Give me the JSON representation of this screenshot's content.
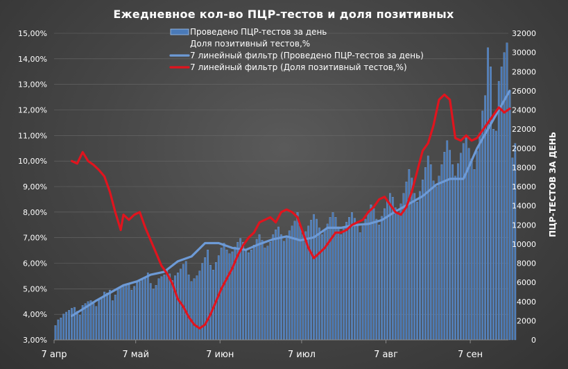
{
  "chart_data": {
    "type": "bar",
    "title": "Ежедневное кол-во ПЦР-тестов и доля позитивных",
    "ylabel_right": "ПЦР-ТЕСТОВ ЗА ДЕНЬ",
    "x_tick_labels": [
      "7 апр",
      "7 май",
      "7 июн",
      "7 июл",
      "7 авг",
      "7 сен"
    ],
    "x_tick_day_index": [
      0,
      30,
      61,
      91,
      122,
      153
    ],
    "x_range_days": [
      0,
      167
    ],
    "y_left": {
      "range": [
        0.03,
        0.15
      ],
      "ticks": [
        0.03,
        0.04,
        0.05,
        0.06,
        0.07,
        0.08,
        0.09,
        0.1,
        0.11,
        0.12,
        0.13,
        0.14,
        0.15
      ],
      "tick_labels": [
        "3,00%",
        "4,00%",
        "5,00%",
        "6,00%",
        "7,00%",
        "8,00%",
        "9,00%",
        "10,00%",
        "11,00%",
        "12,00%",
        "13,00%",
        "14,00%",
        "15,00%"
      ]
    },
    "y_right": {
      "range": [
        0,
        32000
      ],
      "ticks": [
        0,
        2000,
        4000,
        6000,
        8000,
        10000,
        12000,
        14000,
        16000,
        18000,
        20000,
        22000,
        24000,
        26000,
        28000,
        30000,
        32000
      ],
      "tick_labels": [
        "0",
        "2000",
        "4000",
        "6000",
        "8000",
        "10000",
        "12000",
        "14000",
        "16000",
        "18000",
        "20000",
        "22000",
        "24000",
        "26000",
        "28000",
        "30000",
        "32000"
      ]
    },
    "legend": {
      "position": "top-center",
      "entries": [
        {
          "label": "Проведено ПЦР-тестов  за день",
          "kind": "bar"
        },
        {
          "label": "Доля позитивный  тестов,%",
          "kind": "none"
        },
        {
          "label": "7 линейный фильтр (Проведено ПЦР-тестов  за день)",
          "kind": "line"
        },
        {
          "label": "7 линейный фильтр (Доля позитивный  тестов,%)",
          "kind": "line"
        }
      ]
    },
    "colors": {
      "bar": "#4a7ab8",
      "bar_edge": "#8fb3e0",
      "tests_filter_line": "#6d9ad6",
      "positivity_filter_line": "#e0141e"
    },
    "series": [
      {
        "name": "Проведено ПЦР-тестов  за день",
        "axis": "right",
        "kind": "bar",
        "x_start_day": 0,
        "values": [
          1500,
          2100,
          2300,
          2700,
          2900,
          3100,
          3300,
          3400,
          3000,
          2600,
          3600,
          3800,
          4000,
          4100,
          3800,
          3500,
          4200,
          4400,
          5000,
          4900,
          5200,
          4100,
          4700,
          5300,
          5500,
          5700,
          5800,
          5900,
          5200,
          5600,
          6000,
          6100,
          6300,
          6500,
          7000,
          5900,
          5300,
          5700,
          6400,
          6600,
          6800,
          7200,
          6900,
          6200,
          6700,
          7000,
          7400,
          7900,
          8200,
          6800,
          6100,
          6400,
          6700,
          7200,
          8000,
          8600,
          9400,
          7800,
          7300,
          8100,
          8800,
          9600,
          10100,
          9400,
          9000,
          9200,
          9700,
          10200,
          10600,
          10200,
          9300,
          9100,
          9400,
          9900,
          10500,
          11000,
          10400,
          9600,
          9800,
          10200,
          11000,
          11500,
          11800,
          11000,
          10300,
          10700,
          11400,
          11900,
          12400,
          13300,
          12000,
          11000,
          11300,
          11900,
          12500,
          13100,
          12600,
          11700,
          11000,
          11500,
          12100,
          12800,
          13300,
          12800,
          11800,
          11000,
          11700,
          12300,
          12800,
          13300,
          12700,
          11900,
          11200,
          11900,
          12600,
          13400,
          14100,
          13700,
          12600,
          12000,
          12900,
          13700,
          14500,
          15300,
          14900,
          13800,
          13100,
          14200,
          15300,
          16500,
          17800,
          16900,
          15300,
          14400,
          15500,
          16700,
          18000,
          19200,
          18300,
          16600,
          16000,
          17100,
          18300,
          19600,
          20800,
          19800,
          18300,
          17100,
          18400,
          19500,
          20500,
          21100,
          20000,
          18900,
          17800,
          19700,
          21600,
          23900,
          25500,
          30500,
          28500,
          22000,
          21800,
          27000,
          28500,
          30000,
          31000,
          26000,
          19000,
          20500
        ],
        "values_min": 1500,
        "values_max": 31000
      },
      {
        "name": "7 линейный фильтр (Проведено ПЦР-тестов  за день)",
        "axis": "right",
        "kind": "line",
        "x": [
          6,
          10,
          15,
          20,
          25,
          30,
          35,
          40,
          45,
          50,
          55,
          60,
          65,
          70,
          75,
          80,
          85,
          90,
          95,
          100,
          105,
          110,
          115,
          120,
          125,
          130,
          135,
          140,
          145,
          150,
          155,
          160,
          165,
          167
        ],
        "values": [
          2500,
          3200,
          4100,
          4900,
          5700,
          6100,
          6800,
          7100,
          8200,
          8700,
          10100,
          10100,
          9600,
          9400,
          10000,
          10500,
          10800,
          10400,
          10700,
          11700,
          11700,
          12000,
          12100,
          12500,
          13400,
          14200,
          15000,
          16200,
          16800,
          16800,
          20000,
          22500,
          25000,
          26000
        ]
      },
      {
        "name": "7 линейный фильтр (Доля позитивный  тестов,%)",
        "axis": "left",
        "kind": "line",
        "x": [
          6,
          8,
          10,
          12,
          14,
          16,
          18,
          20,
          22,
          24,
          25,
          27,
          29,
          31,
          33,
          35,
          37,
          39,
          41,
          43,
          45,
          47,
          49,
          51,
          53,
          55,
          57,
          59,
          61,
          63,
          65,
          67,
          69,
          71,
          73,
          75,
          77,
          79,
          81,
          83,
          85,
          87,
          89,
          91,
          93,
          95,
          97,
          99,
          101,
          103,
          105,
          107,
          109,
          111,
          113,
          115,
          117,
          119,
          121,
          123,
          125,
          127,
          129,
          131,
          133,
          135,
          137,
          139,
          141,
          143,
          145,
          147,
          149,
          151,
          153,
          155,
          157,
          159,
          161,
          163,
          165,
          167
        ],
        "values": [
          0.1,
          0.099,
          0.1035,
          0.1,
          0.0985,
          0.0965,
          0.094,
          0.088,
          0.08,
          0.073,
          0.079,
          0.077,
          0.079,
          0.08,
          0.074,
          0.069,
          0.064,
          0.059,
          0.056,
          0.052,
          0.046,
          0.043,
          0.039,
          0.036,
          0.0345,
          0.036,
          0.04,
          0.045,
          0.05,
          0.054,
          0.058,
          0.063,
          0.067,
          0.07,
          0.072,
          0.076,
          0.077,
          0.078,
          0.076,
          0.08,
          0.081,
          0.08,
          0.078,
          0.072,
          0.066,
          0.062,
          0.064,
          0.066,
          0.069,
          0.072,
          0.072,
          0.073,
          0.075,
          0.076,
          0.077,
          0.08,
          0.082,
          0.085,
          0.086,
          0.083,
          0.08,
          0.079,
          0.082,
          0.088,
          0.096,
          0.104,
          0.107,
          0.114,
          0.124,
          0.126,
          0.124,
          0.109,
          0.108,
          0.11,
          0.108,
          0.109,
          0.112,
          0.115,
          0.118,
          0.121,
          0.119,
          0.1205
        ]
      }
    ]
  }
}
